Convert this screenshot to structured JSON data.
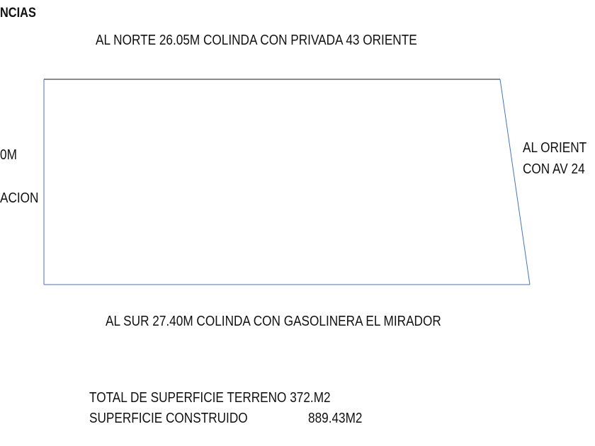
{
  "heading": "NCIAS",
  "north": "AL NORTE 26.05M COLINDA CON PRIVADA 43 ORIENTE",
  "west": {
    "line1": "0M",
    "line2": "ACION"
  },
  "east": {
    "line1": "AL ORIENT",
    "line2": "CON AV 24"
  },
  "south": "AL SUR 27.40M COLINDA CON GASOLINERA EL MIRADOR",
  "totals": {
    "terreno": "TOTAL DE SUPERFICIE TERRENO 372.M2",
    "construido_label": "SUPERFICIE CONSTRUIDO",
    "construido_value": "889.43M2"
  },
  "colors": {
    "outline": "#4472C4",
    "north_edge": "#666666"
  }
}
